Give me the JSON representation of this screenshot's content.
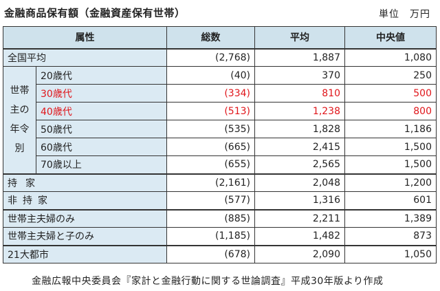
{
  "title": "金融商品保有額（金融資産保有世帯）",
  "unit": "単位　万円",
  "headers": {
    "attribute": "属性",
    "total": "総数",
    "average": "平均",
    "median": "中央値"
  },
  "group_label": [
    "世帯",
    "主の",
    "年令",
    "別"
  ],
  "rows": [
    {
      "label": "全国平均",
      "total": "(2,768)",
      "average": "1,887",
      "median": "1,080"
    },
    {
      "label": "20歳代",
      "total": "(40)",
      "average": "370",
      "median": "250"
    },
    {
      "label": "30歳代",
      "total": "(334)",
      "average": "810",
      "median": "500"
    },
    {
      "label": "40歳代",
      "total": "(513)",
      "average": "1,238",
      "median": "800"
    },
    {
      "label": "50歳代",
      "total": "(535)",
      "average": "1,828",
      "median": "1,186"
    },
    {
      "label": "60歳代",
      "total": "(665)",
      "average": "2,415",
      "median": "1,500"
    },
    {
      "label": "70歳以上",
      "total": "(655)",
      "average": "2,565",
      "median": "1,500"
    },
    {
      "label": "持家",
      "total": "(2,161)",
      "average": "2,048",
      "median": "1,200"
    },
    {
      "label": "非持家",
      "total": "(577)",
      "average": "1,316",
      "median": "601"
    },
    {
      "label": "世帯主夫婦のみ",
      "total": "(885)",
      "average": "2,211",
      "median": "1,389"
    },
    {
      "label": "世帯主夫婦と子のみ",
      "total": "(1,185)",
      "average": "1,482",
      "median": "873"
    },
    {
      "label": "21大都市",
      "total": "(678)",
      "average": "2,090",
      "median": "1,050"
    }
  ],
  "highlight_color": "#e0151a",
  "source": "金融広報中央委員会『家計と金融行動に関する世論調査』平成30年版より作成"
}
